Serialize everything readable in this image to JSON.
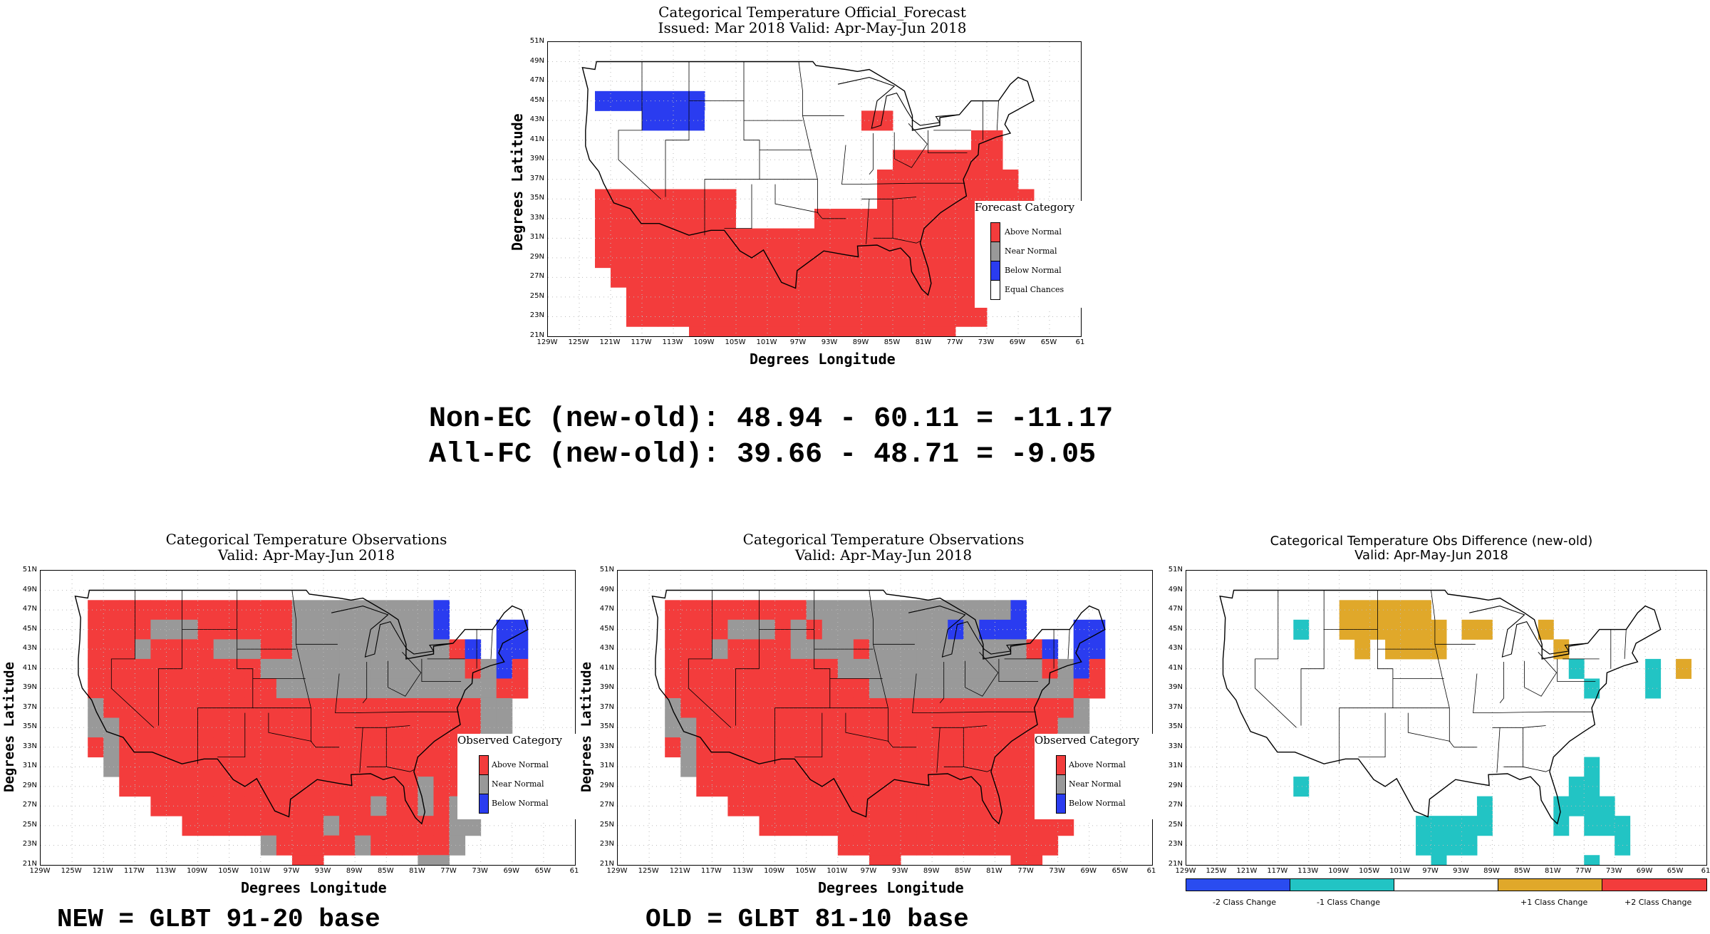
{
  "colors": {
    "above": "#f33c3c",
    "near": "#999999",
    "below": "#2a3cf0",
    "ec": "#ffffff",
    "minus2": "#2a4cf0",
    "minus1": "#22c4c4",
    "zero": "#ffffff",
    "plus1": "#e0a82a",
    "plus2": "#f33c3c"
  },
  "icons": {
    "map": "us-outline-map"
  },
  "axes": {
    "lat_ticks": [
      "51N",
      "49N",
      "47N",
      "45N",
      "43N",
      "41N",
      "39N",
      "37N",
      "35N",
      "33N",
      "31N",
      "29N",
      "27N",
      "25N",
      "23N",
      "21N"
    ],
    "lon_ticks": [
      "129W",
      "125W",
      "121W",
      "117W",
      "113W",
      "109W",
      "105W",
      "101W",
      "97W",
      "93W",
      "89W",
      "85W",
      "81W",
      "77W",
      "73W",
      "69W",
      "65W",
      "61"
    ],
    "xlabel": "Degrees Longitude",
    "ylabel": "Degrees Latitude"
  },
  "forecast": {
    "title1": "Categorical Temperature Official_Forecast",
    "title2": "Issued: Mar 2018 Valid: Apr-May-Jun 2018",
    "legend_title": "Forecast Category",
    "legend": [
      "Above Normal",
      "Near Normal",
      "Below Normal",
      "Equal Chances"
    ]
  },
  "stats": {
    "line1": "Non-EC (new-old): 48.94 - 60.11 = -11.17",
    "line2": "All-FC (new-old): 39.66 - 48.71 = -9.05"
  },
  "obs_new": {
    "title1": "Categorical Temperature Observations",
    "title2": "Valid: Apr-May-Jun 2018",
    "legend_title": "Observed Category",
    "legend": [
      "Above Normal",
      "Near Normal",
      "Below Normal"
    ],
    "caption": "NEW = GLBT 91-20 base"
  },
  "obs_old": {
    "title1": "Categorical Temperature Observations",
    "title2": "Valid: Apr-May-Jun 2018",
    "legend_title": "Observed Category",
    "legend": [
      "Above Normal",
      "Near Normal",
      "Below Normal"
    ],
    "caption": "OLD = GLBT 81-10 base"
  },
  "diff": {
    "title1": "Categorical Temperature Obs Difference (new-old)",
    "title2": "Valid: Apr-May-Jun 2018",
    "colorbar": [
      "-2 Class Change",
      "-1 Class Change",
      "+1 Class Change",
      "+2 Class Change"
    ]
  },
  "grids": {
    "forecast": [
      "................................",
      "................................",
      "..BBBBBBB.......................",
      ".....BBBBW.........AA...........",
      "..........................AA....",
      ".....................AAAAAAA....",
      "....................AAAAAAAAA...",
      "..AAAAAAAAA.........AAAAAAAAAA..",
      "..AAAAAAAAAWWWWWAAAAAAAAAAAAAA..",
      "..AAAAAAAAAAAAAAAAAAAAAAAAAAA...",
      "..AAAAAAAAAAAAAAAAAAAAAAAAAA....",
      "...AAAAAAAAAAAAAAAAAAAAAAAAA....",
      "....AAAAAAAAAAAAAAAAAAAAAAA.....",
      "....AAAAAAAAAAAAAAAAAAAAAAA.....",
      "........AAAAAAAAAAAAAAAAA.......",
      "..............AAAAAAAAAAA.......",
      "..............AAAA.....AA.......",
      "..............AAA.......AA......",
      "...............A........AA......",
      "................................"
    ],
    "obs_new": [
      "................................",
      "..AAAAAAAAAAAAANNNNNNNNNB.......",
      "..AAAANNNAAAAAANNNNNNNNNB...BB..",
      "..AAANAAAANNNAANNNNNNNNNNAB.BB..",
      "..AAAAAAAAAAANNNNNNNNNNNNNANBA..",
      "..AAAAAAAAAAAANNNNNNNNNNNNNNAA..",
      "..NAAAAAAAAAAAAAAAAAAAAAAAANN...",
      "..NNAAAAAAAAAAAAAAAAAAAAAAANN...",
      "..ANAAAAAAAAAAAAAAAAAAAAAAAA....",
      "...NAAAAAAAAAAAAAAAAAAAAAAA.....",
      "....AAAAAAAAAAAAAAAAAAANAAN.....",
      "......AAAAAAAAAAAAAANAANANN.....",
      "........AAAAAAAAANAAAAAAANN.....",
      ".............NAAAAANAAAAAN......",
      "...............AA......NN.......",
      "...............A........NN......",
      "................................",
      "................................",
      "................................",
      "................................"
    ],
    "obs_old": [
      "................................",
      "..AAAAAAAAANNNNNNNNNNNNNB.......",
      "..AAAANNNANANNNNNNNNBNBBB...BB..",
      "..AAANAAAANNNNANNNNNNNNNNAB.BB..",
      "..AAAAAAAAAAANNNNNNNNNNNNNANBA..",
      "..AAAAAAAAAAAAANNNNNNNNNNNNNAA..",
      "..NAAAAAAAAAAAAAAAAAAAAAAAAAN...",
      "..NNAAAAAAAAAAAAAAAAAAAAAAANN...",
      "..ANAAAAAAAAAAAAAAAAAAAAAAAA....",
      "...NAAAAAAAAAAAAAAAAAAAAAAA.....",
      "....AAAAAAAAAAAAAAAAAAAAAAA.....",
      "......AAAAAAAAAAAAAAAAAAAAAA....",
      "........AAAAAAAAAAAAAAAAAAAA....",
      ".............AAAAAAAAAAAAAA.....",
      "...............AA.......AA......",
      "...............A........NA......",
      "................................",
      "................................",
      "................................",
      "................................"
    ],
    "diff": [
      "................................",
      ".........PPPPPP.................",
      "......C..PPPPPPP.PP...P.........",
      "..........P.PPPP.......P........",
      "........................C....C.P",
      ".........................C...C..",
      "................................",
      "................................",
      "................................",
      ".........................C......",
      "......C.................CC.......",
      "..................C....CCCC......",
      "..............CCCCC....C.CCC.....",
      "..............CCCC.........C.....",
      "...............C.........C......",
      "................................",
      "................................",
      "................................",
      "................................",
      "................................"
    ]
  }
}
